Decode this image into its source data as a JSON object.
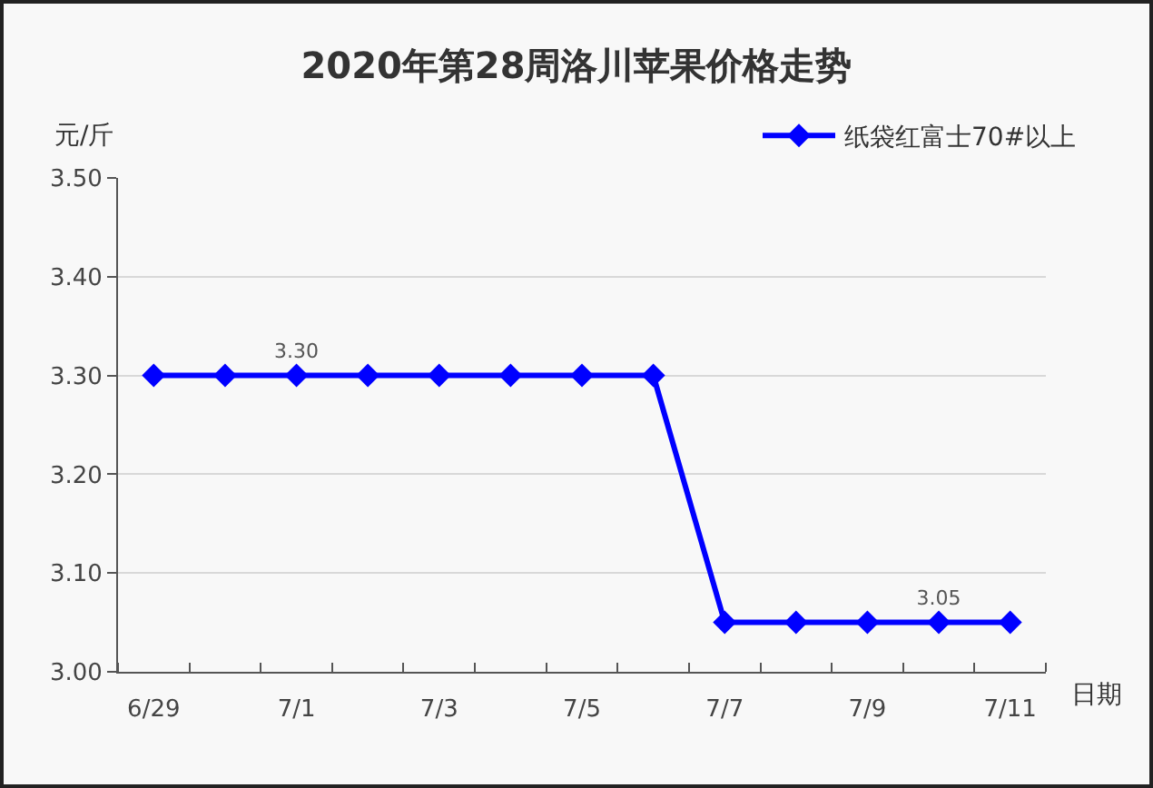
{
  "chart_data": {
    "type": "line",
    "title": "2020年第28周洛川苹果价格走势",
    "xlabel": "日期",
    "ylabel": "元/斤",
    "categories": [
      "6/29",
      null,
      "7/1",
      null,
      "7/3",
      null,
      "7/5",
      null,
      "7/7",
      null,
      "7/9",
      null,
      "7/11"
    ],
    "series": [
      {
        "name": "纸袋红富士70#以上",
        "color": "#0000ff",
        "values": [
          3.3,
          3.3,
          3.3,
          3.3,
          3.3,
          3.3,
          3.3,
          3.3,
          3.05,
          3.05,
          3.05,
          3.05,
          3.05
        ],
        "value_labels": [
          null,
          null,
          "3.30",
          null,
          null,
          null,
          null,
          null,
          null,
          null,
          null,
          "3.05",
          null
        ]
      }
    ],
    "ylim": [
      3.0,
      3.5
    ],
    "yticks": [
      {
        "value": 3.0,
        "label": "3.00"
      },
      {
        "value": 3.1,
        "label": "3.10"
      },
      {
        "value": 3.2,
        "label": "3.20"
      },
      {
        "value": 3.3,
        "label": "3.30"
      },
      {
        "value": 3.4,
        "label": "3.40"
      },
      {
        "value": 3.5,
        "label": "3.50"
      }
    ],
    "grid": "y",
    "legend": "top right",
    "marker": "diamond",
    "line_style": "solid"
  }
}
